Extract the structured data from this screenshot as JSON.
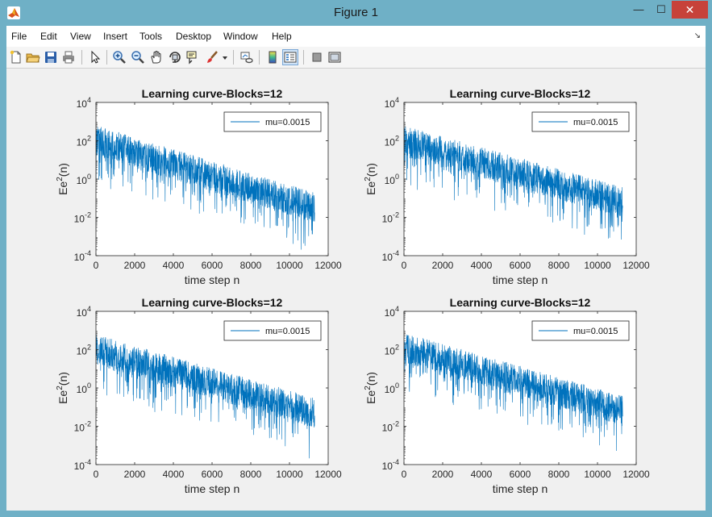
{
  "window": {
    "title": "Figure 1",
    "minimize_glyph": "—",
    "maximize_glyph": "☐",
    "close_glyph": "✕",
    "app_icon": "matlab-logo-icon"
  },
  "menu": {
    "items": [
      "File",
      "Edit",
      "View",
      "Insert",
      "Tools",
      "Desktop",
      "Window",
      "Help"
    ],
    "corner_glyph": "↘"
  },
  "toolbar": {
    "icons": [
      "new-figure-icon",
      "open-file-icon",
      "save-icon",
      "print-icon",
      "edit-plot-arrow-icon",
      "zoom-in-icon",
      "zoom-out-icon",
      "pan-hand-icon",
      "rotate-3d-icon",
      "data-cursor-icon",
      "brush-icon",
      "brush-dropdown-icon",
      "link-plot-icon",
      "insert-colorbar-icon",
      "insert-legend-icon",
      "hide-plot-tools-icon",
      "show-plot-tools-icon"
    ]
  },
  "colors": {
    "line": "#0072bd",
    "figure_bg": "#f0f0f0",
    "axes_bg": "#ffffff"
  },
  "chart_data": [
    {
      "type": "line",
      "title": "Learning curve-Blocks=12",
      "xlabel": "time step n",
      "ylabel": "Ee",
      "ylabel_sup": "2",
      "ylabel_tail": "(n)",
      "xlim": [
        0,
        12000
      ],
      "ylim": [
        0.0001,
        10000
      ],
      "yscale": "log",
      "xticks": [
        "0",
        "2000",
        "4000",
        "6000",
        "8000",
        "10000",
        "12000"
      ],
      "yticks": [
        {
          "base": "10",
          "exp": "-4"
        },
        {
          "base": "10",
          "exp": "-2"
        },
        {
          "base": "10",
          "exp": "0"
        },
        {
          "base": "10",
          "exp": "2"
        },
        {
          "base": "10",
          "exp": "4"
        }
      ],
      "legend": {
        "label": "mu=0.0015",
        "location": "northeast"
      },
      "series": [
        {
          "name": "mu=0.0015",
          "n_max": 11300,
          "trend_log10": [
            [
              0,
              2.0
            ],
            [
              11300,
              -1.5
            ]
          ],
          "noise_log10": 0.8
        }
      ]
    },
    {
      "type": "line",
      "title": "Learning curve-Blocks=12",
      "xlabel": "time step n",
      "ylabel": "Ee",
      "ylabel_sup": "2",
      "ylabel_tail": "(n)",
      "xlim": [
        0,
        12000
      ],
      "ylim": [
        0.0001,
        10000
      ],
      "yscale": "log",
      "xticks": [
        "0",
        "2000",
        "4000",
        "6000",
        "8000",
        "10000",
        "12000"
      ],
      "yticks": [
        {
          "base": "10",
          "exp": "-4"
        },
        {
          "base": "10",
          "exp": "-2"
        },
        {
          "base": "10",
          "exp": "0"
        },
        {
          "base": "10",
          "exp": "2"
        },
        {
          "base": "10",
          "exp": "4"
        }
      ],
      "legend": {
        "label": "mu=0.0015",
        "location": "northeast"
      },
      "series": [
        {
          "name": "mu=0.0015",
          "n_max": 11300,
          "trend_log10": [
            [
              0,
              2.0
            ],
            [
              11300,
              -1.2
            ]
          ],
          "noise_log10": 0.8
        }
      ]
    },
    {
      "type": "line",
      "title": "Learning curve-Blocks=12",
      "xlabel": "time step n",
      "ylabel": "Ee",
      "ylabel_sup": "2",
      "ylabel_tail": "(n)",
      "xlim": [
        0,
        12000
      ],
      "ylim": [
        0.0001,
        10000
      ],
      "yscale": "log",
      "xticks": [
        "0",
        "2000",
        "4000",
        "6000",
        "8000",
        "10000",
        "12000"
      ],
      "yticks": [
        {
          "base": "10",
          "exp": "-4"
        },
        {
          "base": "10",
          "exp": "-2"
        },
        {
          "base": "10",
          "exp": "0"
        },
        {
          "base": "10",
          "exp": "2"
        },
        {
          "base": "10",
          "exp": "4"
        }
      ],
      "legend": {
        "label": "mu=0.0015",
        "location": "northeast"
      },
      "series": [
        {
          "name": "mu=0.0015",
          "n_max": 11300,
          "trend_log10": [
            [
              0,
              2.0
            ],
            [
              11300,
              -1.3
            ]
          ],
          "noise_log10": 0.8
        }
      ]
    },
    {
      "type": "line",
      "title": "Learning curve-Blocks=12",
      "xlabel": "time step n",
      "ylabel": "Ee",
      "ylabel_sup": "2",
      "ylabel_tail": "(n)",
      "xlim": [
        0,
        12000
      ],
      "ylim": [
        0.0001,
        10000
      ],
      "yscale": "log",
      "xticks": [
        "0",
        "2000",
        "4000",
        "6000",
        "8000",
        "10000",
        "12000"
      ],
      "yticks": [
        {
          "base": "10",
          "exp": "-4"
        },
        {
          "base": "10",
          "exp": "-2"
        },
        {
          "base": "10",
          "exp": "0"
        },
        {
          "base": "10",
          "exp": "2"
        },
        {
          "base": "10",
          "exp": "4"
        }
      ],
      "legend": {
        "label": "mu=0.0015",
        "location": "northeast"
      },
      "series": [
        {
          "name": "mu=0.0015",
          "n_max": 11300,
          "trend_log10": [
            [
              0,
              2.1
            ],
            [
              11300,
              -1.2
            ]
          ],
          "noise_log10": 0.8
        }
      ]
    }
  ]
}
